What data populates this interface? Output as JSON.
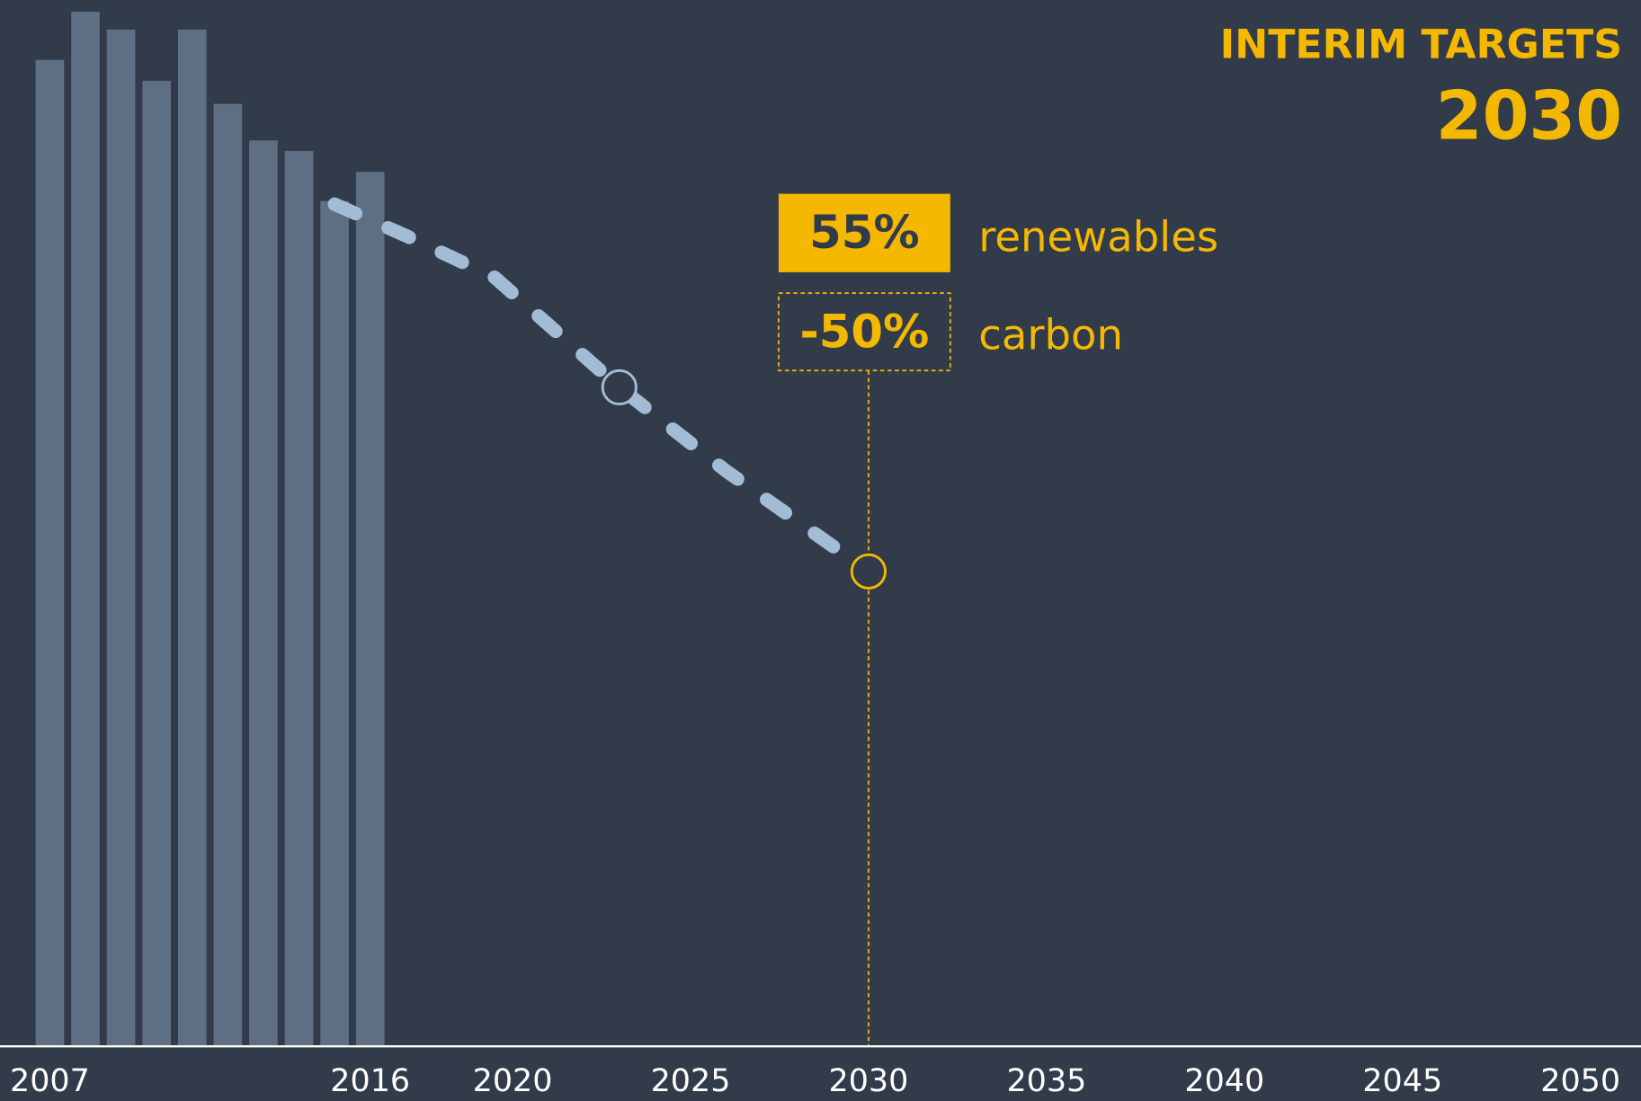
{
  "chart_data": {
    "type": "bar",
    "title": "INTERIM TARGETS",
    "subtitle": "2030",
    "annotations": {
      "renewables_value": "55%",
      "renewables_label": "renewables",
      "carbon_value": "-50%",
      "carbon_label": "carbon"
    },
    "x": [
      2007,
      2008,
      2009,
      2010,
      2011,
      2012,
      2013,
      2014,
      2015,
      2016
    ],
    "values": [
      94.3,
      98.9,
      97.2,
      92.3,
      97.2,
      90.1,
      86.6,
      85.6,
      80.8,
      83.6
    ],
    "color": "#5f6f83",
    "line": {
      "x": [
        2015,
        2017,
        2019.5,
        2021,
        2023,
        2026,
        2030
      ],
      "values": [
        80.5,
        77.5,
        73.5,
        69,
        63,
        55,
        45.4
      ],
      "color": "#a3bcd6",
      "dashed": true
    },
    "highlight_color": "#f5b800",
    "xlim": [
      2005.6,
      2051.7
    ],
    "xticks": [
      2007,
      2016,
      2020,
      2025,
      2030,
      2035,
      2040,
      2045,
      2050
    ],
    "ylim": [
      0,
      100
    ]
  }
}
